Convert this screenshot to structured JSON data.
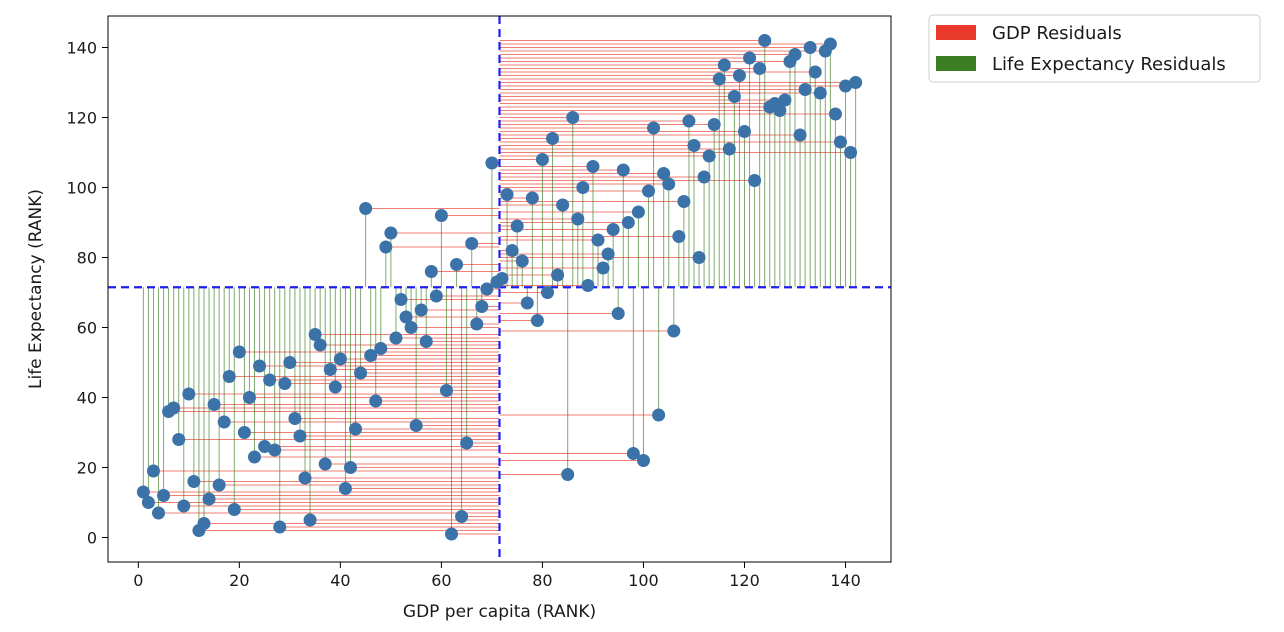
{
  "chart_data": {
    "type": "scatter",
    "title": "",
    "xlabel": "GDP per capita (RANK)",
    "ylabel": "Life Expectancy (RANK)",
    "xlim": [
      -6,
      149
    ],
    "ylim": [
      -7,
      149
    ],
    "xticks": [
      0,
      20,
      40,
      60,
      80,
      100,
      120,
      140
    ],
    "yticks": [
      0,
      20,
      40,
      60,
      80,
      100,
      120,
      140
    ],
    "mean_x": 71.5,
    "mean_y": 71.5,
    "grid": false,
    "legend_position": "outside-top-right",
    "legend": [
      {
        "label": "GDP Residuals",
        "color": "#e8392b"
      },
      {
        "label": "Life Expectancy Residuals",
        "color": "#3a7d22"
      }
    ],
    "colors": {
      "points": "#3b73a8",
      "gdp_residual_lines": "#e8392b",
      "life_residual_lines": "#3a7d22",
      "mean_lines": "#1f1ff0"
    },
    "points": [
      [
        1,
        13
      ],
      [
        2,
        10
      ],
      [
        3,
        19
      ],
      [
        4,
        7
      ],
      [
        5,
        12
      ],
      [
        6,
        36
      ],
      [
        7,
        37
      ],
      [
        8,
        28
      ],
      [
        9,
        9
      ],
      [
        10,
        41
      ],
      [
        11,
        16
      ],
      [
        12,
        2
      ],
      [
        13,
        4
      ],
      [
        14,
        11
      ],
      [
        15,
        38
      ],
      [
        16,
        15
      ],
      [
        17,
        33
      ],
      [
        18,
        46
      ],
      [
        19,
        8
      ],
      [
        20,
        53
      ],
      [
        21,
        30
      ],
      [
        22,
        40
      ],
      [
        23,
        23
      ],
      [
        24,
        49
      ],
      [
        25,
        26
      ],
      [
        26,
        45
      ],
      [
        27,
        25
      ],
      [
        28,
        3
      ],
      [
        29,
        44
      ],
      [
        30,
        50
      ],
      [
        31,
        34
      ],
      [
        32,
        29
      ],
      [
        33,
        17
      ],
      [
        34,
        5
      ],
      [
        35,
        58
      ],
      [
        36,
        55
      ],
      [
        37,
        21
      ],
      [
        38,
        48
      ],
      [
        39,
        43
      ],
      [
        40,
        51
      ],
      [
        41,
        14
      ],
      [
        42,
        20
      ],
      [
        43,
        31
      ],
      [
        44,
        47
      ],
      [
        45,
        94
      ],
      [
        46,
        52
      ],
      [
        47,
        39
      ],
      [
        48,
        54
      ],
      [
        49,
        83
      ],
      [
        50,
        87
      ],
      [
        51,
        57
      ],
      [
        52,
        68
      ],
      [
        53,
        63
      ],
      [
        54,
        60
      ],
      [
        55,
        32
      ],
      [
        56,
        65
      ],
      [
        57,
        56
      ],
      [
        58,
        76
      ],
      [
        59,
        69
      ],
      [
        60,
        92
      ],
      [
        61,
        42
      ],
      [
        62,
        1
      ],
      [
        63,
        78
      ],
      [
        64,
        6
      ],
      [
        65,
        27
      ],
      [
        66,
        84
      ],
      [
        67,
        61
      ],
      [
        68,
        66
      ],
      [
        69,
        71
      ],
      [
        70,
        107
      ],
      [
        71,
        73
      ],
      [
        72,
        74
      ],
      [
        73,
        98
      ],
      [
        74,
        82
      ],
      [
        75,
        89
      ],
      [
        76,
        79
      ],
      [
        77,
        67
      ],
      [
        78,
        97
      ],
      [
        79,
        62
      ],
      [
        80,
        108
      ],
      [
        81,
        70
      ],
      [
        82,
        114
      ],
      [
        83,
        75
      ],
      [
        84,
        95
      ],
      [
        85,
        18
      ],
      [
        86,
        120
      ],
      [
        87,
        91
      ],
      [
        88,
        100
      ],
      [
        89,
        72
      ],
      [
        90,
        106
      ],
      [
        91,
        85
      ],
      [
        92,
        77
      ],
      [
        93,
        81
      ],
      [
        94,
        88
      ],
      [
        95,
        64
      ],
      [
        96,
        105
      ],
      [
        97,
        90
      ],
      [
        98,
        24
      ],
      [
        99,
        93
      ],
      [
        100,
        22
      ],
      [
        101,
        99
      ],
      [
        102,
        117
      ],
      [
        103,
        35
      ],
      [
        104,
        104
      ],
      [
        105,
        101
      ],
      [
        106,
        59
      ],
      [
        107,
        86
      ],
      [
        108,
        96
      ],
      [
        109,
        119
      ],
      [
        110,
        112
      ],
      [
        111,
        80
      ],
      [
        112,
        103
      ],
      [
        113,
        109
      ],
      [
        114,
        118
      ],
      [
        115,
        131
      ],
      [
        116,
        135
      ],
      [
        117,
        111
      ],
      [
        118,
        126
      ],
      [
        119,
        132
      ],
      [
        120,
        116
      ],
      [
        121,
        137
      ],
      [
        122,
        102
      ],
      [
        123,
        134
      ],
      [
        124,
        142
      ],
      [
        125,
        123
      ],
      [
        126,
        124
      ],
      [
        127,
        122
      ],
      [
        128,
        125
      ],
      [
        129,
        136
      ],
      [
        130,
        138
      ],
      [
        131,
        115
      ],
      [
        132,
        128
      ],
      [
        133,
        140
      ],
      [
        134,
        133
      ],
      [
        135,
        127
      ],
      [
        136,
        139
      ],
      [
        137,
        141
      ],
      [
        138,
        121
      ],
      [
        139,
        113
      ],
      [
        140,
        129
      ],
      [
        141,
        110
      ],
      [
        142,
        130
      ]
    ]
  }
}
